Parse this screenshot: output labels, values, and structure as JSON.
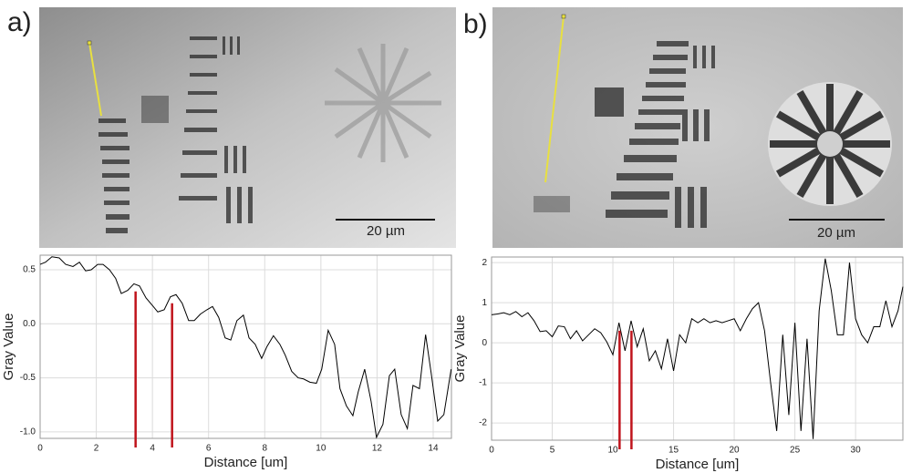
{
  "panels": [
    {
      "label": "a)",
      "scale_bar": "20 µm"
    },
    {
      "label": "b)",
      "scale_bar": "20 µm"
    }
  ],
  "chart_data": [
    {
      "type": "line",
      "xlabel": "Distance [um]",
      "ylabel": "Gray Value",
      "xlim": [
        0,
        14.65
      ],
      "ylim": [
        -1.06,
        0.635
      ],
      "xticks": [
        0,
        2,
        4,
        6,
        8,
        10,
        12,
        14
      ],
      "yticks": [
        {
          "value": -1.0,
          "label": "-1.0"
        },
        {
          "value": -0.5,
          "label": "-0.5"
        },
        {
          "value": 0.0,
          "label": "0.0"
        },
        {
          "value": 0.5,
          "label": "0.5"
        }
      ],
      "grid": true,
      "x": [
        0,
        0.19,
        0.42,
        0.68,
        0.91,
        1.17,
        1.4,
        1.62,
        1.82,
        2.05,
        2.24,
        2.47,
        2.69,
        2.89,
        3.12,
        3.34,
        3.54,
        3.77,
        4.0,
        4.19,
        4.42,
        4.64,
        4.84,
        5.06,
        5.29,
        5.49,
        5.71,
        5.94,
        6.14,
        6.36,
        6.59,
        6.79,
        7.01,
        7.24,
        7.44,
        7.66,
        7.89,
        8.08,
        8.31,
        8.54,
        8.73,
        8.96,
        9.19,
        9.38,
        9.61,
        9.84,
        10.03,
        10.26,
        10.49,
        10.68,
        10.91,
        11.14,
        11.33,
        11.56,
        11.79,
        11.98,
        12.21,
        12.44,
        12.63,
        12.86,
        13.08,
        13.28,
        13.51,
        13.73,
        13.93,
        14.16,
        14.38,
        14.64
      ],
      "series": [
        {
          "color": "#000000",
          "values": [
            0.55,
            0.57,
            0.62,
            0.61,
            0.55,
            0.53,
            0.57,
            0.49,
            0.5,
            0.55,
            0.55,
            0.5,
            0.42,
            0.28,
            0.31,
            0.37,
            0.35,
            0.24,
            0.17,
            0.11,
            0.13,
            0.25,
            0.27,
            0.19,
            0.03,
            0.03,
            0.09,
            0.13,
            0.16,
            0.06,
            -0.13,
            -0.15,
            0.03,
            0.08,
            -0.13,
            -0.19,
            -0.32,
            -0.21,
            -0.11,
            -0.19,
            -0.29,
            -0.44,
            -0.5,
            -0.51,
            -0.54,
            -0.55,
            -0.42,
            -0.06,
            -0.19,
            -0.6,
            -0.76,
            -0.85,
            -0.63,
            -0.42,
            -0.72,
            -1.05,
            -0.93,
            -0.48,
            -0.42,
            -0.84,
            -0.97,
            -0.57,
            -0.6,
            -0.1,
            -0.46,
            -0.9,
            -0.84,
            -0.42
          ]
        }
      ],
      "vlines": {
        "x": [
          3.4,
          4.7
        ],
        "top": [
          0.3,
          0.19
        ],
        "color": "#c0141c"
      }
    },
    {
      "type": "line",
      "xlabel": "Distance [um]",
      "ylabel": "Gray Value",
      "xlim": [
        0,
        33.9
      ],
      "ylim": [
        -2.43,
        2.14
      ],
      "xticks": [
        0,
        5,
        10,
        15,
        20,
        25,
        30
      ],
      "yticks": [
        -2,
        -1,
        0,
        1,
        2
      ],
      "grid": true,
      "x": [
        0,
        0.5,
        1,
        1.5,
        2,
        2.5,
        3,
        3.5,
        4,
        4.5,
        5,
        5.5,
        6,
        6.5,
        7,
        7.5,
        8,
        8.5,
        9,
        9.5,
        10,
        10.5,
        11,
        11.5,
        12,
        12.5,
        13,
        13.5,
        14,
        14.5,
        15,
        15.5,
        16,
        16.5,
        17,
        17.5,
        18,
        18.5,
        19,
        19.5,
        20,
        20.5,
        21,
        21.5,
        22,
        22.5,
        23,
        23.5,
        24,
        24.5,
        25,
        25.5,
        26,
        26.5,
        27,
        27.5,
        28,
        28.5,
        29,
        29.5,
        30,
        30.5,
        31,
        31.5,
        32,
        32.5,
        33,
        33.5,
        33.9
      ],
      "series": [
        {
          "color": "#000000",
          "values": [
            0.7,
            0.72,
            0.75,
            0.7,
            0.78,
            0.65,
            0.75,
            0.55,
            0.28,
            0.3,
            0.15,
            0.42,
            0.4,
            0.1,
            0.3,
            0.05,
            0.2,
            0.35,
            0.25,
            0.02,
            -0.3,
            0.5,
            -0.2,
            0.55,
            -0.1,
            0.35,
            -0.45,
            -0.2,
            -0.65,
            0.1,
            -0.7,
            0.2,
            0.0,
            0.6,
            0.5,
            0.6,
            0.5,
            0.55,
            0.5,
            0.55,
            0.6,
            0.3,
            0.6,
            0.85,
            1.0,
            0.3,
            -1.0,
            -2.2,
            0.2,
            -1.8,
            0.5,
            -2.2,
            0.1,
            -2.4,
            0.8,
            2.1,
            1.3,
            0.2,
            0.2,
            2.0,
            0.6,
            0.2,
            0.0,
            0.4,
            0.4,
            1.05,
            0.4,
            0.8,
            1.4
          ]
        }
      ],
      "vlines": {
        "x": [
          10.55,
          11.53
        ],
        "top": [
          0.3,
          0.3
        ],
        "color": "#c0141c"
      }
    }
  ]
}
